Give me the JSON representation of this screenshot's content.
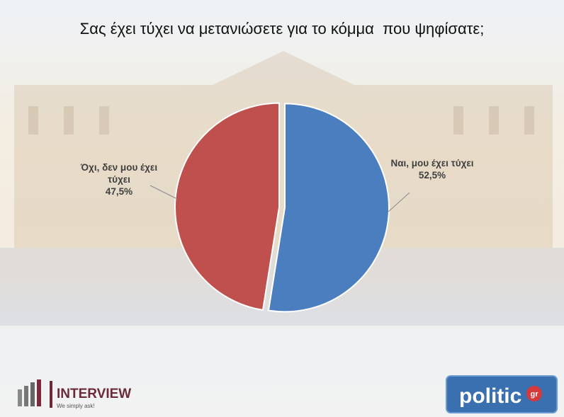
{
  "chart_data": {
    "type": "pie",
    "title": "Σας έχει τύχει να μετανιώσετε για το κόμμα  που ψηφίσατε;",
    "categories": [
      "Ναι, μου έχει τύχει",
      "Όχι, δεν μου έχει τύχει"
    ],
    "values": [
      52.5,
      47.5
    ],
    "value_labels": [
      "52,5%",
      "47,5%"
    ],
    "colors": [
      "#4a7ebf",
      "#c0504d"
    ]
  },
  "logos": {
    "left": "INTERVIEW",
    "left_tagline": "We simply ask!",
    "right": "politic",
    "right_badge": "gr"
  }
}
